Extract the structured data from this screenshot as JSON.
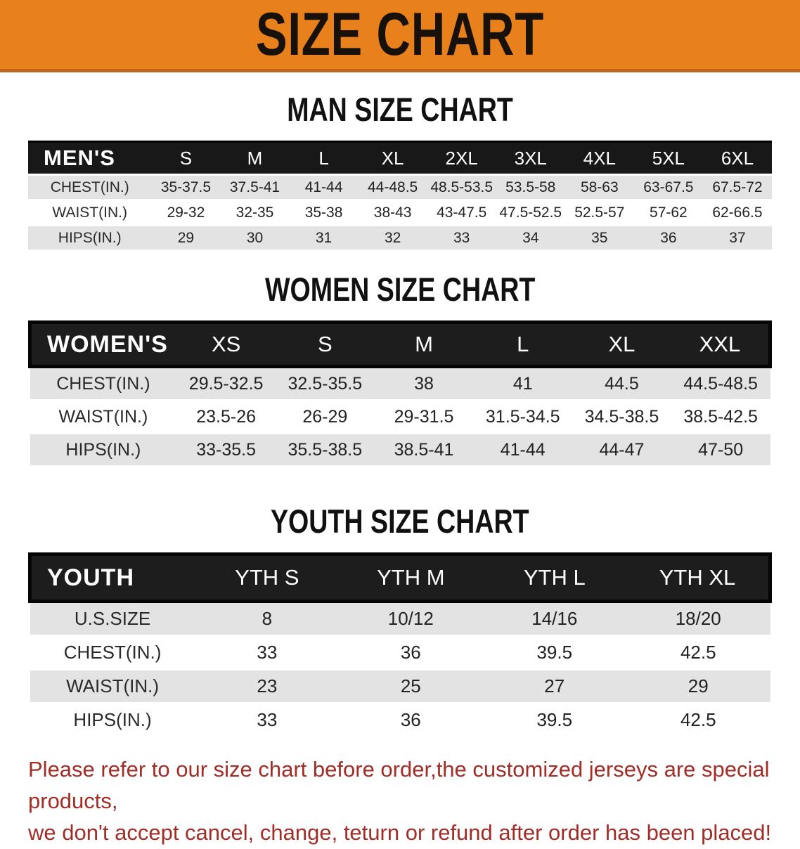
{
  "banner": {
    "title": "SIZE CHART",
    "bg_color": "#E8811C",
    "border_color": "#C2661B",
    "text_color": "#17110a"
  },
  "sections": [
    {
      "heading": "MAN SIZE CHART",
      "table": {
        "header_label": "MEN'S",
        "columns": [
          "S",
          "M",
          "L",
          "XL",
          "2XL",
          "3XL",
          "4XL",
          "5XL",
          "6XL"
        ],
        "rows": [
          {
            "label": "CHEST(IN.)",
            "values": [
              "35-37.5",
              "37.5-41",
              "41-44",
              "44-48.5",
              "48.5-53.5",
              "53.5-58",
              "58-63",
              "63-67.5",
              "67.5-72"
            ]
          },
          {
            "label": "WAIST(IN.)",
            "values": [
              "29-32",
              "32-35",
              "35-38",
              "38-43",
              "43-47.5",
              "47.5-52.5",
              "52.5-57",
              "57-62",
              "62-66.5"
            ]
          },
          {
            "label": "HIPS(IN.)",
            "values": [
              "29",
              "30",
              "31",
              "32",
              "33",
              "34",
              "35",
              "36",
              "37"
            ]
          }
        ]
      }
    },
    {
      "heading": "WOMEN SIZE CHART",
      "table": {
        "header_label": "WOMEN'S",
        "columns": [
          "XS",
          "S",
          "M",
          "L",
          "XL",
          "XXL"
        ],
        "rows": [
          {
            "label": "CHEST(IN.)",
            "values": [
              "29.5-32.5",
              "32.5-35.5",
              "38",
              "41",
              "44.5",
              "44.5-48.5"
            ]
          },
          {
            "label": "WAIST(IN.)",
            "values": [
              "23.5-26",
              "26-29",
              "29-31.5",
              "31.5-34.5",
              "34.5-38.5",
              "38.5-42.5"
            ]
          },
          {
            "label": "HIPS(IN.)",
            "values": [
              "33-35.5",
              "35.5-38.5",
              "38.5-41",
              "41-44",
              "44-47",
              "47-50"
            ]
          }
        ]
      }
    },
    {
      "heading": "YOUTH SIZE CHART",
      "table": {
        "header_label": "YOUTH",
        "columns": [
          "YTH S",
          "YTH M",
          "YTH L",
          "YTH XL"
        ],
        "rows": [
          {
            "label": "U.S.SIZE",
            "values": [
              "8",
              "10/12",
              "14/16",
              "18/20"
            ]
          },
          {
            "label": "CHEST(IN.)",
            "values": [
              "33",
              "36",
              "39.5",
              "42.5"
            ]
          },
          {
            "label": "WAIST(IN.)",
            "values": [
              "23",
              "25",
              "27",
              "29"
            ]
          },
          {
            "label": "HIPS(IN.)",
            "values": [
              "33",
              "36",
              "39.5",
              "42.5"
            ]
          }
        ]
      }
    }
  ],
  "table_style": {
    "header_bg": "#181818",
    "stripe_bg": "#E3E3E3",
    "header_text": "#ffffff"
  },
  "disclaimer": {
    "line1": "Please refer to our size chart before order,the customized jerseys are special products,",
    "line2": "we don't accept cancel, change, teturn or refund after order has been placed!",
    "color": "#A22D26"
  }
}
